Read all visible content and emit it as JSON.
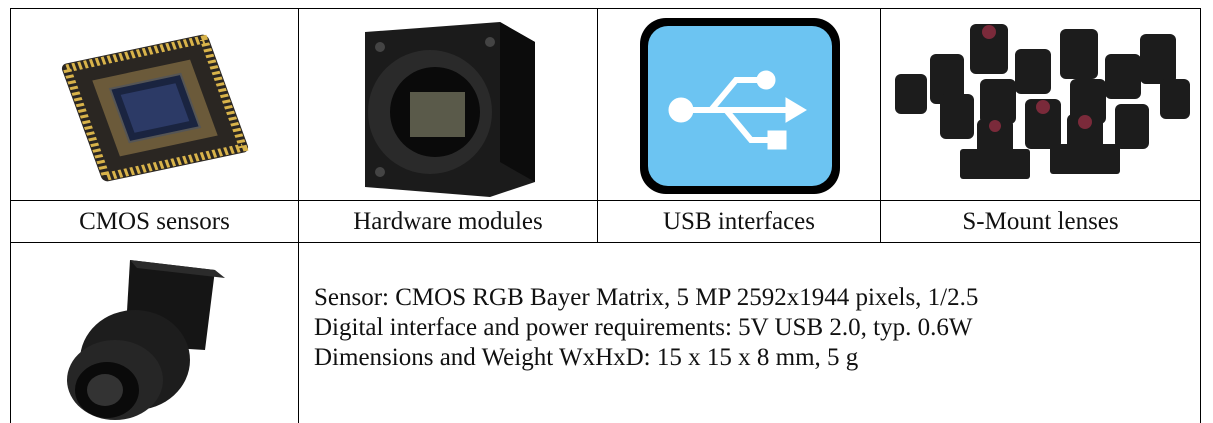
{
  "table": {
    "captions": [
      "CMOS sensors",
      "Hardware modules",
      "USB interfaces",
      "S-Mount lenses"
    ],
    "specs": [
      "Sensor: CMOS RGB Bayer Matrix, 5 MP 2592x1944 pixels, 1/2.5",
      "Digital interface and power requirements: 5V USB 2.0, typ. 0.6W",
      "Dimensions and Weight WxHxD: 15 x 15 x 8 mm, 5 g"
    ]
  }
}
